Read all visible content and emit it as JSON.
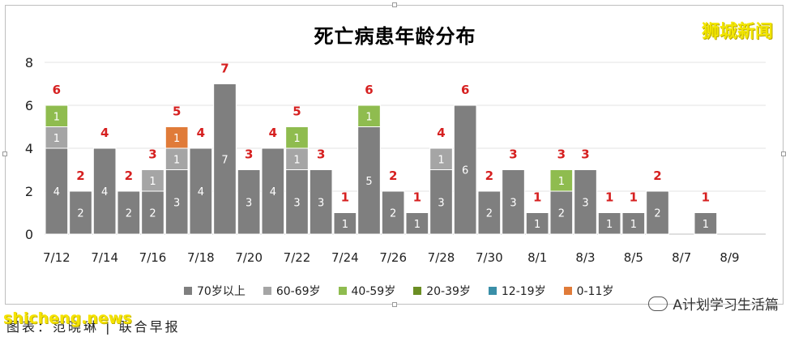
{
  "chart_data": {
    "type": "bar",
    "stacked": true,
    "title": "死亡病患年龄分布",
    "categories": [
      "7/12",
      "7/13",
      "7/14",
      "7/15",
      "7/16",
      "7/17",
      "7/18",
      "7/19",
      "7/20",
      "7/21",
      "7/22",
      "7/23",
      "7/24",
      "7/25",
      "7/26",
      "7/27",
      "7/28",
      "7/29",
      "7/30",
      "7/31",
      "8/1",
      "8/2",
      "8/3",
      "8/4",
      "8/5",
      "8/6",
      "8/7",
      "8/8",
      "8/9",
      "8/10"
    ],
    "x_tick_labels": [
      "7/12",
      "7/14",
      "7/16",
      "7/18",
      "7/20",
      "7/22",
      "7/24",
      "7/26",
      "7/28",
      "7/30",
      "8/1",
      "8/3",
      "8/5",
      "8/7",
      "8/9"
    ],
    "ylim": [
      0,
      8
    ],
    "y_ticks": [
      0,
      2,
      4,
      6,
      8
    ],
    "series": [
      {
        "name": "70岁以上",
        "color": "#7f7f7f",
        "values": [
          4,
          2,
          4,
          2,
          2,
          3,
          4,
          7,
          3,
          4,
          3,
          3,
          1,
          5,
          2,
          1,
          3,
          6,
          2,
          3,
          1,
          2,
          3,
          1,
          1,
          2,
          0,
          1,
          0,
          0
        ]
      },
      {
        "name": "60-69岁",
        "color": "#a5a5a5",
        "values": [
          1,
          0,
          0,
          0,
          1,
          1,
          0,
          0,
          0,
          0,
          1,
          0,
          0,
          0,
          0,
          0,
          1,
          0,
          0,
          0,
          0,
          0,
          0,
          0,
          0,
          0,
          0,
          0,
          0,
          0
        ]
      },
      {
        "name": "40-59岁",
        "color": "#8fbc4f",
        "values": [
          1,
          0,
          0,
          0,
          0,
          0,
          0,
          0,
          0,
          0,
          1,
          0,
          0,
          1,
          0,
          0,
          0,
          0,
          0,
          0,
          0,
          1,
          0,
          0,
          0,
          0,
          0,
          0,
          0,
          0
        ]
      },
      {
        "name": "20-39岁",
        "color": "#6b8e23",
        "values": [
          0,
          0,
          0,
          0,
          0,
          0,
          0,
          0,
          0,
          0,
          0,
          0,
          0,
          0,
          0,
          0,
          0,
          0,
          0,
          0,
          0,
          0,
          0,
          0,
          0,
          0,
          0,
          0,
          0,
          0
        ]
      },
      {
        "name": "12-19岁",
        "color": "#3a8fa8",
        "values": [
          0,
          0,
          0,
          0,
          0,
          0,
          0,
          0,
          0,
          0,
          0,
          0,
          0,
          0,
          0,
          0,
          0,
          0,
          0,
          0,
          0,
          0,
          0,
          0,
          0,
          0,
          0,
          0,
          0,
          0
        ]
      },
      {
        "name": "0-11岁",
        "color": "#e07b39",
        "values": [
          0,
          0,
          0,
          0,
          0,
          1,
          0,
          0,
          0,
          0,
          0,
          0,
          0,
          0,
          0,
          0,
          0,
          0,
          0,
          0,
          0,
          0,
          0,
          0,
          0,
          0,
          0,
          0,
          0,
          0
        ]
      }
    ],
    "totals": [
      6,
      2,
      4,
      2,
      3,
      5,
      4,
      7,
      3,
      4,
      5,
      3,
      1,
      6,
      2,
      1,
      4,
      6,
      2,
      3,
      1,
      3,
      3,
      1,
      1,
      2,
      0,
      1,
      0,
      0
    ],
    "grid": true,
    "legend_position": "bottom",
    "total_label_color": "#d62020"
  },
  "brand": "狮城新闻",
  "watermark": "shicheng.news",
  "caption": "图表：范晓琳 | 联合早报",
  "wechat_label": "A计划学习生活篇"
}
